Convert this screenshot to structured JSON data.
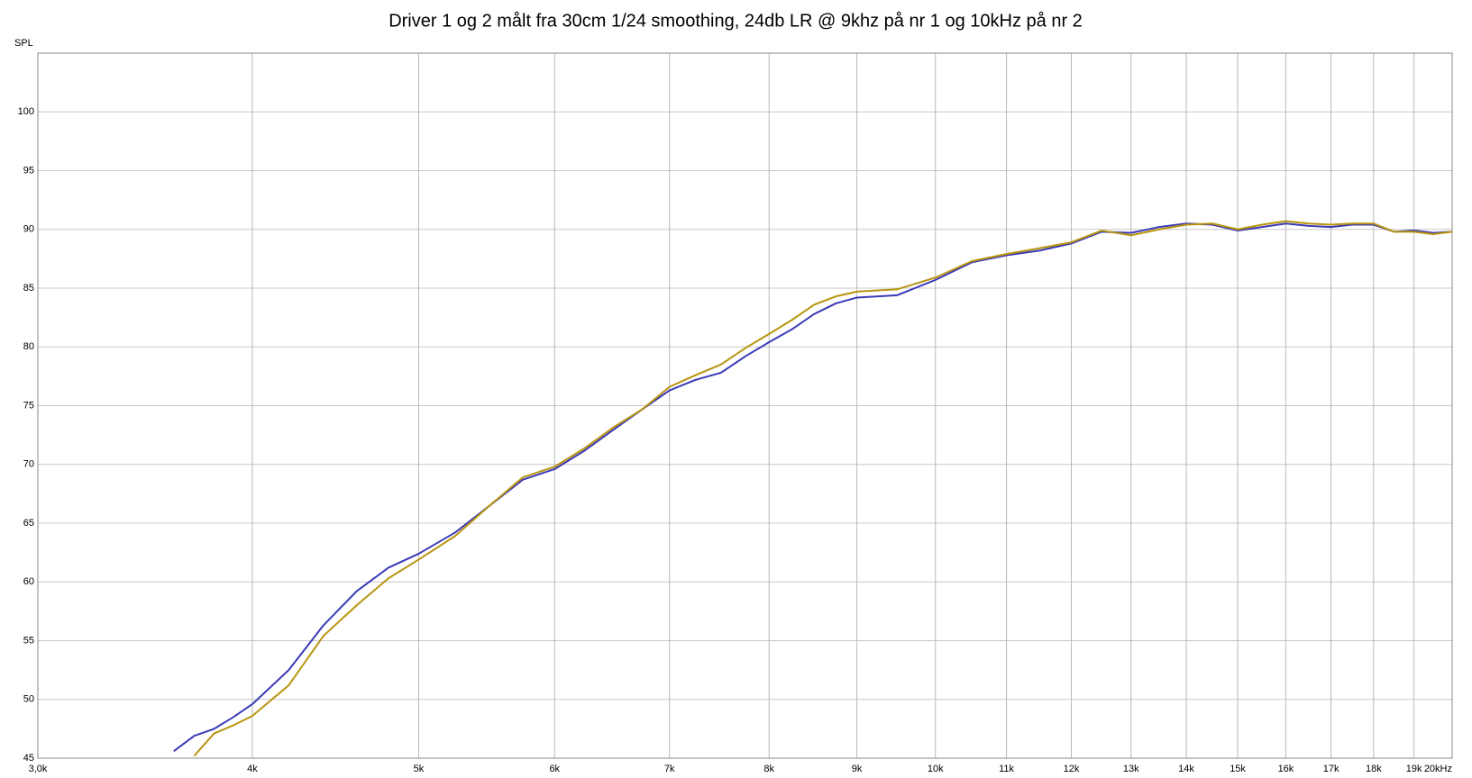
{
  "chart_data": {
    "type": "line",
    "title": "Driver 1 og 2 målt fra 30cm 1/24 smoothing, 24db LR @ 9khz på nr 1 og 10kHz på nr 2",
    "y_label": "SPL",
    "xscale": "log",
    "grid": true,
    "xlim": [
      3000,
      20000
    ],
    "xticks": [
      {
        "value": 3000,
        "label": "3,0k"
      },
      {
        "value": 4000,
        "label": "4k"
      },
      {
        "value": 5000,
        "label": "5k"
      },
      {
        "value": 6000,
        "label": "6k"
      },
      {
        "value": 7000,
        "label": "7k"
      },
      {
        "value": 8000,
        "label": "8k"
      },
      {
        "value": 9000,
        "label": "9k"
      },
      {
        "value": 10000,
        "label": "10k"
      },
      {
        "value": 11000,
        "label": "11k"
      },
      {
        "value": 12000,
        "label": "12k"
      },
      {
        "value": 13000,
        "label": "13k"
      },
      {
        "value": 14000,
        "label": "14k"
      },
      {
        "value": 15000,
        "label": "15k"
      },
      {
        "value": 16000,
        "label": "16k"
      },
      {
        "value": 17000,
        "label": "17k"
      },
      {
        "value": 18000,
        "label": "18k"
      },
      {
        "value": 19000,
        "label": "19k"
      },
      {
        "value": 20000,
        "label": "20kHz"
      }
    ],
    "ylim": [
      45,
      105
    ],
    "yticks": [
      45,
      50,
      55,
      60,
      65,
      70,
      75,
      80,
      85,
      90,
      95,
      100
    ],
    "x": [
      3600,
      3700,
      3800,
      3900,
      4000,
      4200,
      4400,
      4600,
      4800,
      5000,
      5250,
      5500,
      5750,
      6000,
      6250,
      6500,
      6750,
      7000,
      7250,
      7500,
      7750,
      8000,
      8250,
      8500,
      8750,
      9000,
      9500,
      10000,
      10500,
      11000,
      11500,
      12000,
      12500,
      13000,
      13500,
      14000,
      14500,
      15000,
      15500,
      16000,
      16500,
      17000,
      17500,
      18000,
      18500,
      19000,
      19500,
      20000
    ],
    "series": [
      {
        "color": "#3a3ab8",
        "values": [
          45.6,
          46.9,
          47.5,
          48.5,
          49.6,
          52.5,
          56.3,
          59.2,
          61.2,
          62.4,
          64.2,
          66.5,
          68.7,
          69.6,
          71.2,
          73.0,
          74.7,
          76.3,
          77.2,
          77.8,
          79.2,
          80.4,
          81.5,
          82.8,
          83.7,
          84.2,
          84.4,
          85.7,
          87.2,
          87.8,
          88.2,
          88.8,
          89.8,
          89.7,
          90.2,
          90.5,
          90.4,
          89.9,
          90.2,
          90.5,
          90.3,
          90.2,
          90.4,
          90.4,
          89.8,
          89.9,
          89.7,
          89.8
        ]
      },
      {
        "color": "#b8940f",
        "values": [
          null,
          45.2,
          47.1,
          47.8,
          48.6,
          51.2,
          55.4,
          58.0,
          60.3,
          61.9,
          63.9,
          66.5,
          68.9,
          69.8,
          71.4,
          73.2,
          74.7,
          76.6,
          77.6,
          78.5,
          79.9,
          81.1,
          82.3,
          83.6,
          84.3,
          84.7,
          84.9,
          85.9,
          87.3,
          87.9,
          88.4,
          88.9,
          89.9,
          89.5,
          90.0,
          90.4,
          90.5,
          90.0,
          90.4,
          90.7,
          90.5,
          90.4,
          90.5,
          90.5,
          89.8,
          89.8,
          89.6,
          89.8
        ]
      }
    ]
  }
}
